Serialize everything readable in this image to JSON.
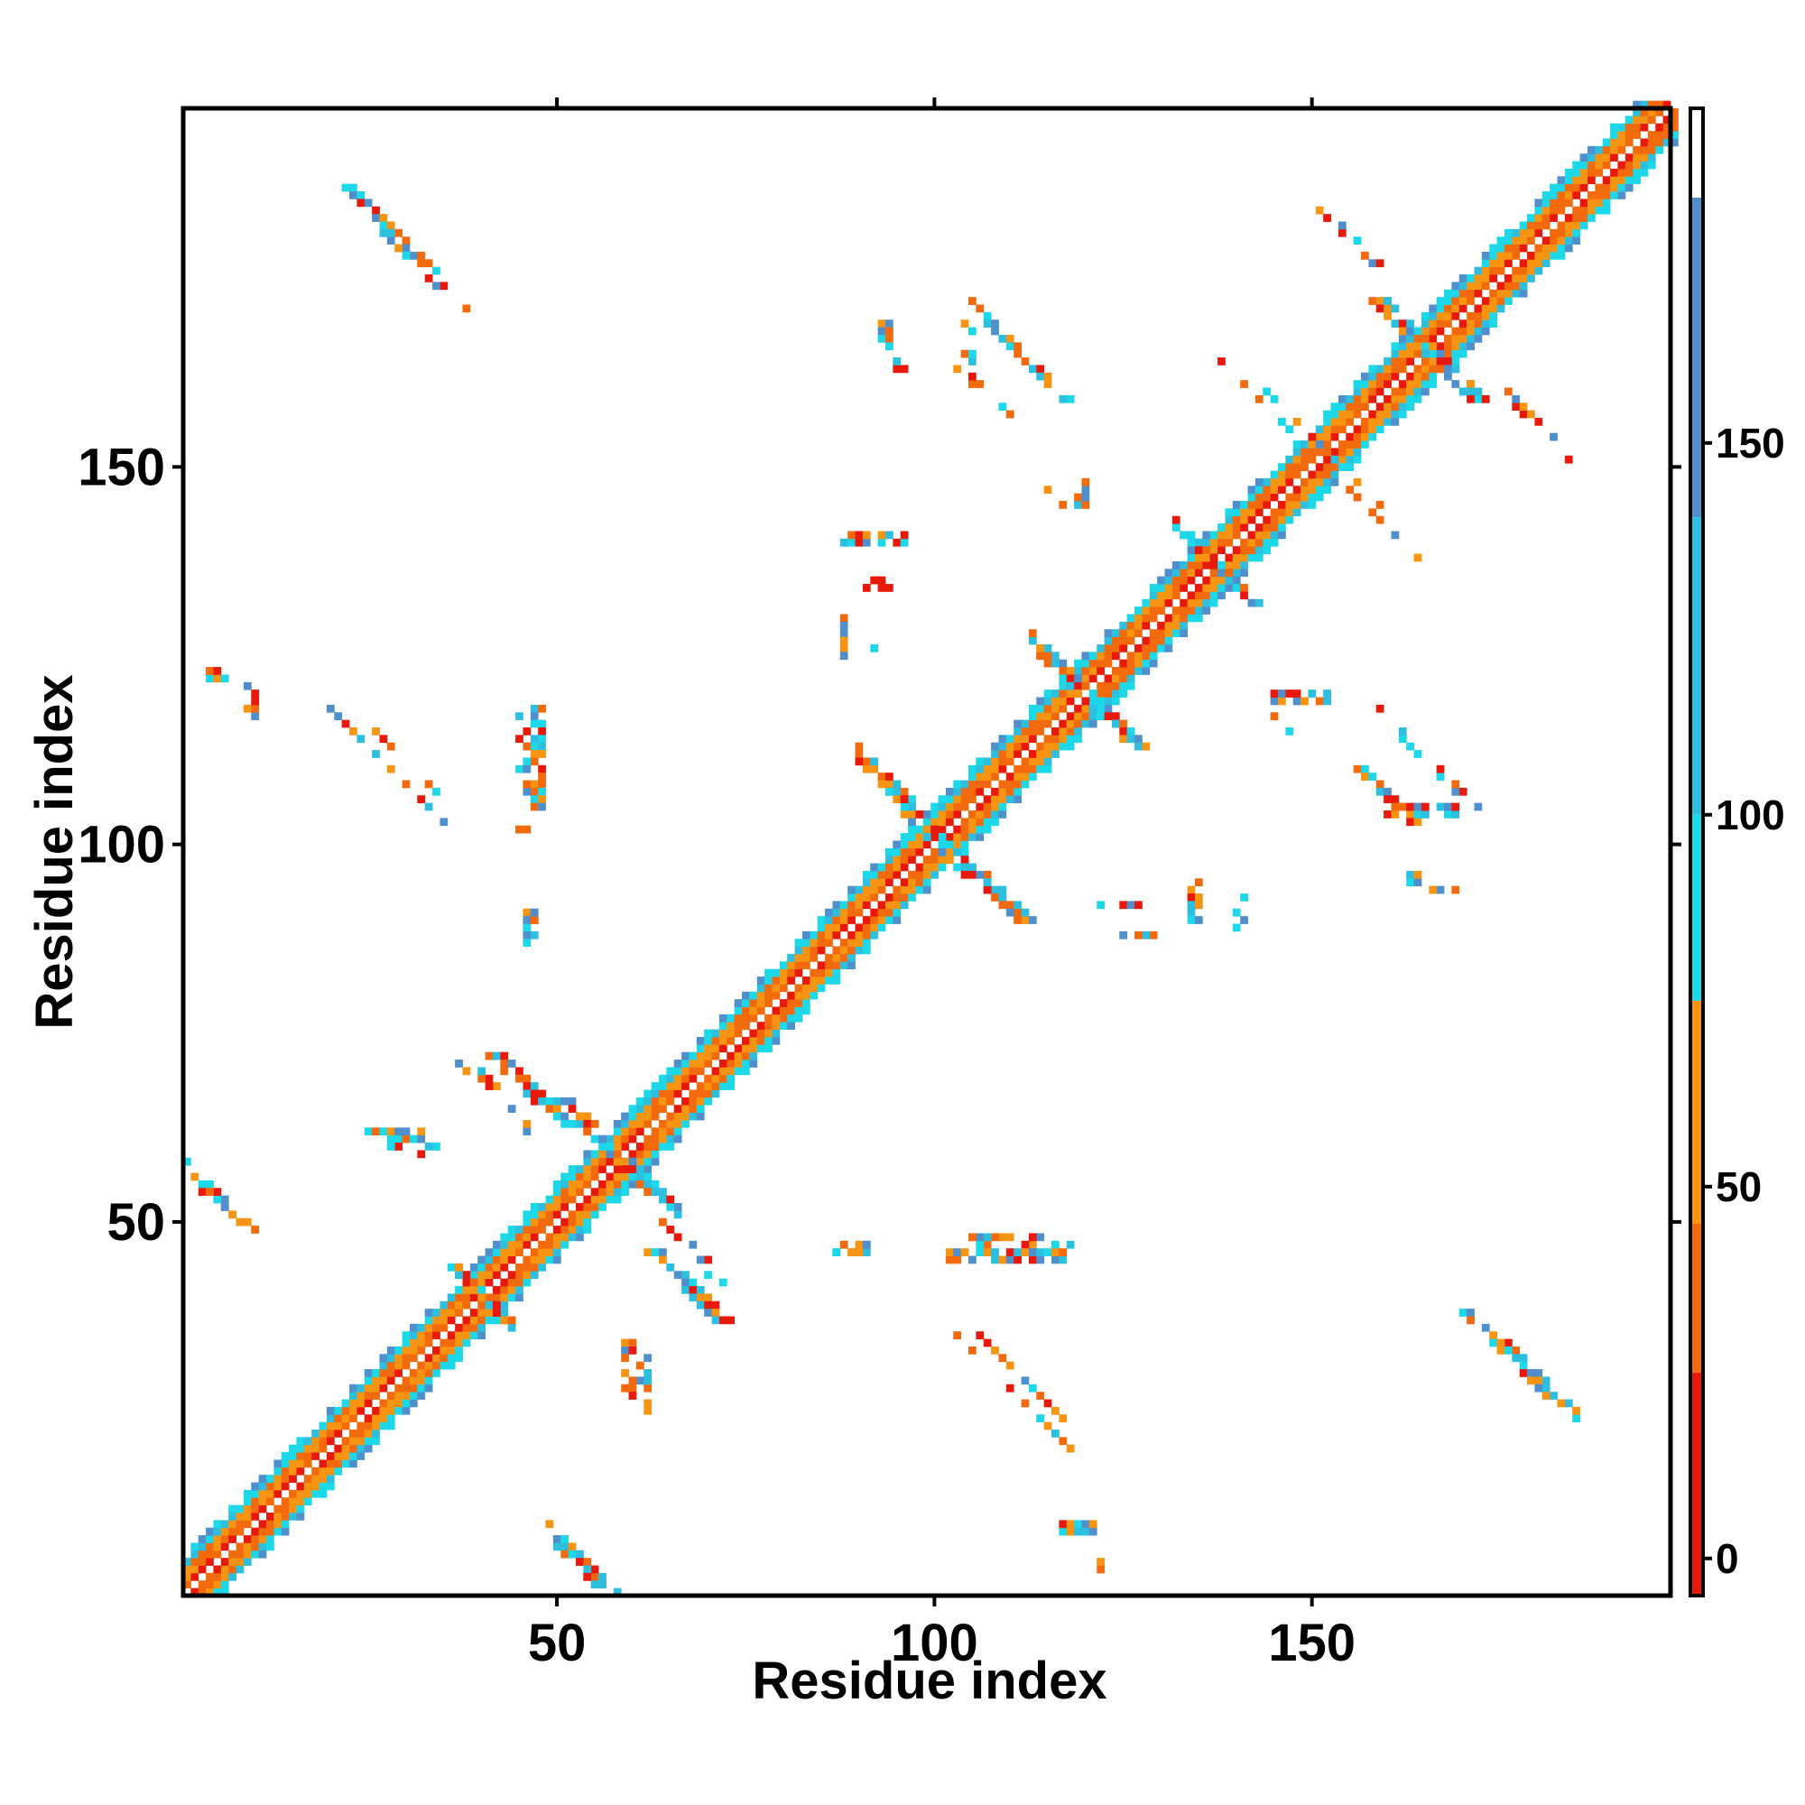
{
  "chart_data": {
    "type": "heatmap",
    "title": "",
    "xlabel": "Residue index",
    "ylabel": "Residue index",
    "xlim": [
      0.5,
      197.5
    ],
    "ylim": [
      0.5,
      197.5
    ],
    "x_ticks": [
      "50",
      "100",
      "150"
    ],
    "y_ticks": [
      "50",
      "100",
      "150"
    ],
    "colorbar": {
      "range": [
        -5,
        195
      ],
      "ticks": [
        "0",
        "50",
        "100",
        "150"
      ],
      "bands": [
        {
          "from": -5,
          "to": 25,
          "color": "#e8190a"
        },
        {
          "from": 25,
          "to": 45,
          "color": "#f26a0c"
        },
        {
          "from": 45,
          "to": 75,
          "color": "#f79412"
        },
        {
          "from": 75,
          "to": 100,
          "color": "#1cd8e8"
        },
        {
          "from": 100,
          "to": 140,
          "color": "#2cbfe0"
        },
        {
          "from": 140,
          "to": 183,
          "color": "#4f8fcc"
        },
        {
          "from": 183,
          "to": 195,
          "color": "#ffffff"
        }
      ]
    },
    "colors": {
      "red": "#e8190a",
      "orange_red": "#f26a0c",
      "orange": "#f79412",
      "cyan": "#1cd8e8",
      "sky": "#2cbfe0",
      "steel": "#4f8fcc"
    },
    "diagonal_width": 5,
    "contact_clusters": [
      {
        "x0": 22,
        "y0": 187,
        "dx": 1,
        "dy": -1,
        "len": 12,
        "w": 2
      },
      {
        "x0": 4,
        "y0": 122,
        "dx": 1,
        "dy": 0,
        "len": 3,
        "w": 2
      },
      {
        "x0": 20,
        "y0": 118,
        "dx": 1,
        "dy": -1,
        "len": 16,
        "w": 1
      },
      {
        "x0": 47,
        "y0": 118,
        "dx": 0,
        "dy": -1,
        "len": 14,
        "w": 2
      },
      {
        "x0": 46,
        "y0": 92,
        "dx": 0,
        "dy": -1,
        "len": 6,
        "w": 2
      },
      {
        "x0": 41,
        "y0": 72,
        "dx": 1,
        "dy": -1,
        "len": 10,
        "w": 3
      },
      {
        "x0": 50,
        "y0": 66,
        "dx": 1,
        "dy": -1,
        "len": 14,
        "w": 3
      },
      {
        "x0": 62,
        "y0": 46,
        "dx": 1,
        "dy": -1,
        "len": 10,
        "w": 3
      },
      {
        "x0": 25,
        "y0": 61,
        "dx": 1,
        "dy": 0,
        "len": 8,
        "w": 2
      },
      {
        "x0": 1,
        "y0": 56,
        "dx": 1,
        "dy": -1,
        "len": 8,
        "w": 3
      },
      {
        "x0": 59,
        "y0": 34,
        "dx": 0,
        "dy": -1,
        "len": 8,
        "w": 2
      },
      {
        "x0": 49,
        "y0": 8,
        "dx": 1,
        "dy": -1,
        "len": 8,
        "w": 3
      },
      {
        "x0": 93,
        "y0": 169,
        "dx": 0,
        "dy": -1,
        "len": 4,
        "w": 2
      },
      {
        "x0": 104,
        "y0": 172,
        "dx": 1,
        "dy": -1,
        "len": 14,
        "w": 2
      },
      {
        "x0": 113,
        "y0": 149,
        "dx": 1,
        "dy": -1,
        "len": 6,
        "w": 1
      },
      {
        "x0": 88,
        "y0": 140,
        "dx": 1,
        "dy": 0,
        "len": 9,
        "w": 2
      },
      {
        "x0": 88,
        "y0": 130,
        "dx": 0,
        "dy": -1,
        "len": 6,
        "w": 1
      },
      {
        "x0": 90,
        "y0": 112,
        "dx": 1,
        "dy": -1,
        "len": 10,
        "w": 2
      },
      {
        "x0": 104,
        "y0": 97,
        "dx": 1,
        "dy": -1,
        "len": 8,
        "w": 3
      },
      {
        "x0": 122,
        "y0": 92,
        "dx": 1,
        "dy": 0,
        "len": 6,
        "w": 1
      },
      {
        "x0": 134,
        "y0": 95,
        "dx": 0,
        "dy": -1,
        "len": 6,
        "w": 2
      },
      {
        "x0": 102,
        "y0": 45,
        "dx": 1,
        "dy": 0,
        "len": 16,
        "w": 2
      },
      {
        "x0": 103,
        "y0": 38,
        "dx": 1,
        "dy": -1,
        "len": 16,
        "w": 1
      },
      {
        "x0": 87,
        "y0": 46,
        "dx": 1,
        "dy": 0,
        "len": 5,
        "w": 2
      },
      {
        "x0": 117,
        "y0": 9,
        "dx": 1,
        "dy": 0,
        "len": 5,
        "w": 2
      },
      {
        "x0": 151,
        "y0": 184,
        "dx": 1,
        "dy": -1,
        "len": 8,
        "w": 1
      },
      {
        "x0": 144,
        "y0": 160,
        "dx": 1,
        "dy": -1,
        "len": 12,
        "w": 1
      },
      {
        "x0": 155,
        "y0": 147,
        "dx": 1,
        "dy": -1,
        "len": 10,
        "w": 1
      },
      {
        "x0": 145,
        "y0": 119,
        "dx": 1,
        "dy": 0,
        "len": 8,
        "w": 2
      },
      {
        "x0": 154,
        "y0": 112,
        "dx": 1,
        "dy": -1,
        "len": 10,
        "w": 2
      },
      {
        "x0": 160,
        "y0": 104,
        "dx": 1,
        "dy": 0,
        "len": 10,
        "w": 2
      },
      {
        "x0": 162,
        "y0": 95,
        "dx": 1,
        "dy": 0,
        "len": 3,
        "w": 2
      },
      {
        "x0": 170,
        "y0": 38,
        "dx": 1,
        "dy": -1,
        "len": 12,
        "w": 2
      },
      {
        "x0": 158,
        "y0": 172,
        "dx": 1,
        "dy": -1,
        "len": 14,
        "w": 3
      },
      {
        "x0": 176,
        "y0": 160,
        "dx": 1,
        "dy": -1,
        "len": 8,
        "w": 1
      },
      {
        "x0": 113,
        "y0": 126,
        "dx": 1,
        "dy": -1,
        "len": 14,
        "w": 3
      },
      {
        "x0": 93,
        "y0": 107,
        "dx": 1,
        "dy": -1,
        "len": 12,
        "w": 3
      },
      {
        "x0": 36,
        "y0": 44,
        "dx": 1,
        "dy": -1,
        "len": 8,
        "w": 2
      },
      {
        "x0": 133,
        "y0": 141,
        "dx": 1,
        "dy": -1,
        "len": 10,
        "w": 2
      }
    ]
  }
}
